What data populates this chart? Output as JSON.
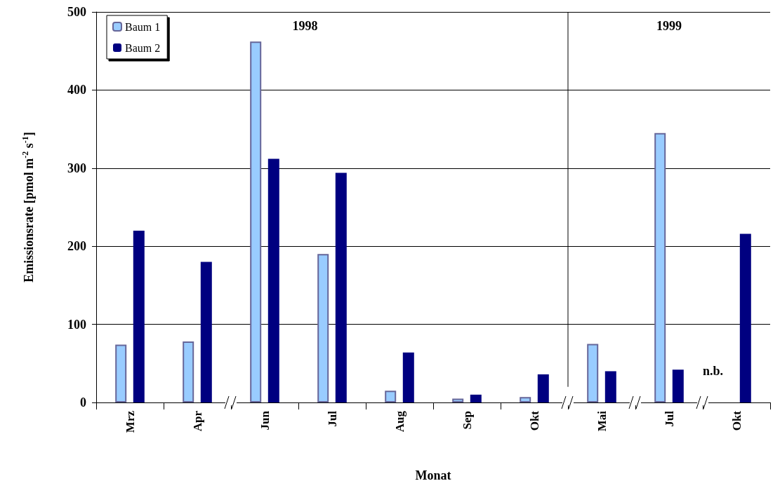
{
  "chart_data": {
    "type": "bar",
    "xlabel": "Monat",
    "ylabel": "Emissionsrate [pmol m$^{-2}$ s$^{-1}$]",
    "categories": [
      "Mrz",
      "Apr",
      "Jun",
      "Jul",
      "Aug",
      "Sep",
      "Okt",
      "Mai",
      "Jul",
      "Okt"
    ],
    "series": [
      {
        "name": "Baum 1",
        "color": "#99ccff",
        "values": [
          74,
          78,
          462,
          190,
          15,
          5,
          7,
          75,
          345,
          null
        ]
      },
      {
        "name": "Baum 2",
        "color": "#000080",
        "values": [
          220,
          180,
          312,
          294,
          64,
          10,
          36,
          40,
          42,
          216
        ]
      }
    ],
    "ylim": [
      0,
      500
    ],
    "yticks": [
      0,
      100,
      200,
      300,
      400,
      500
    ],
    "grid": "y",
    "legend": "top left",
    "annotations": [
      "1998",
      "1999",
      "n.b."
    ]
  }
}
